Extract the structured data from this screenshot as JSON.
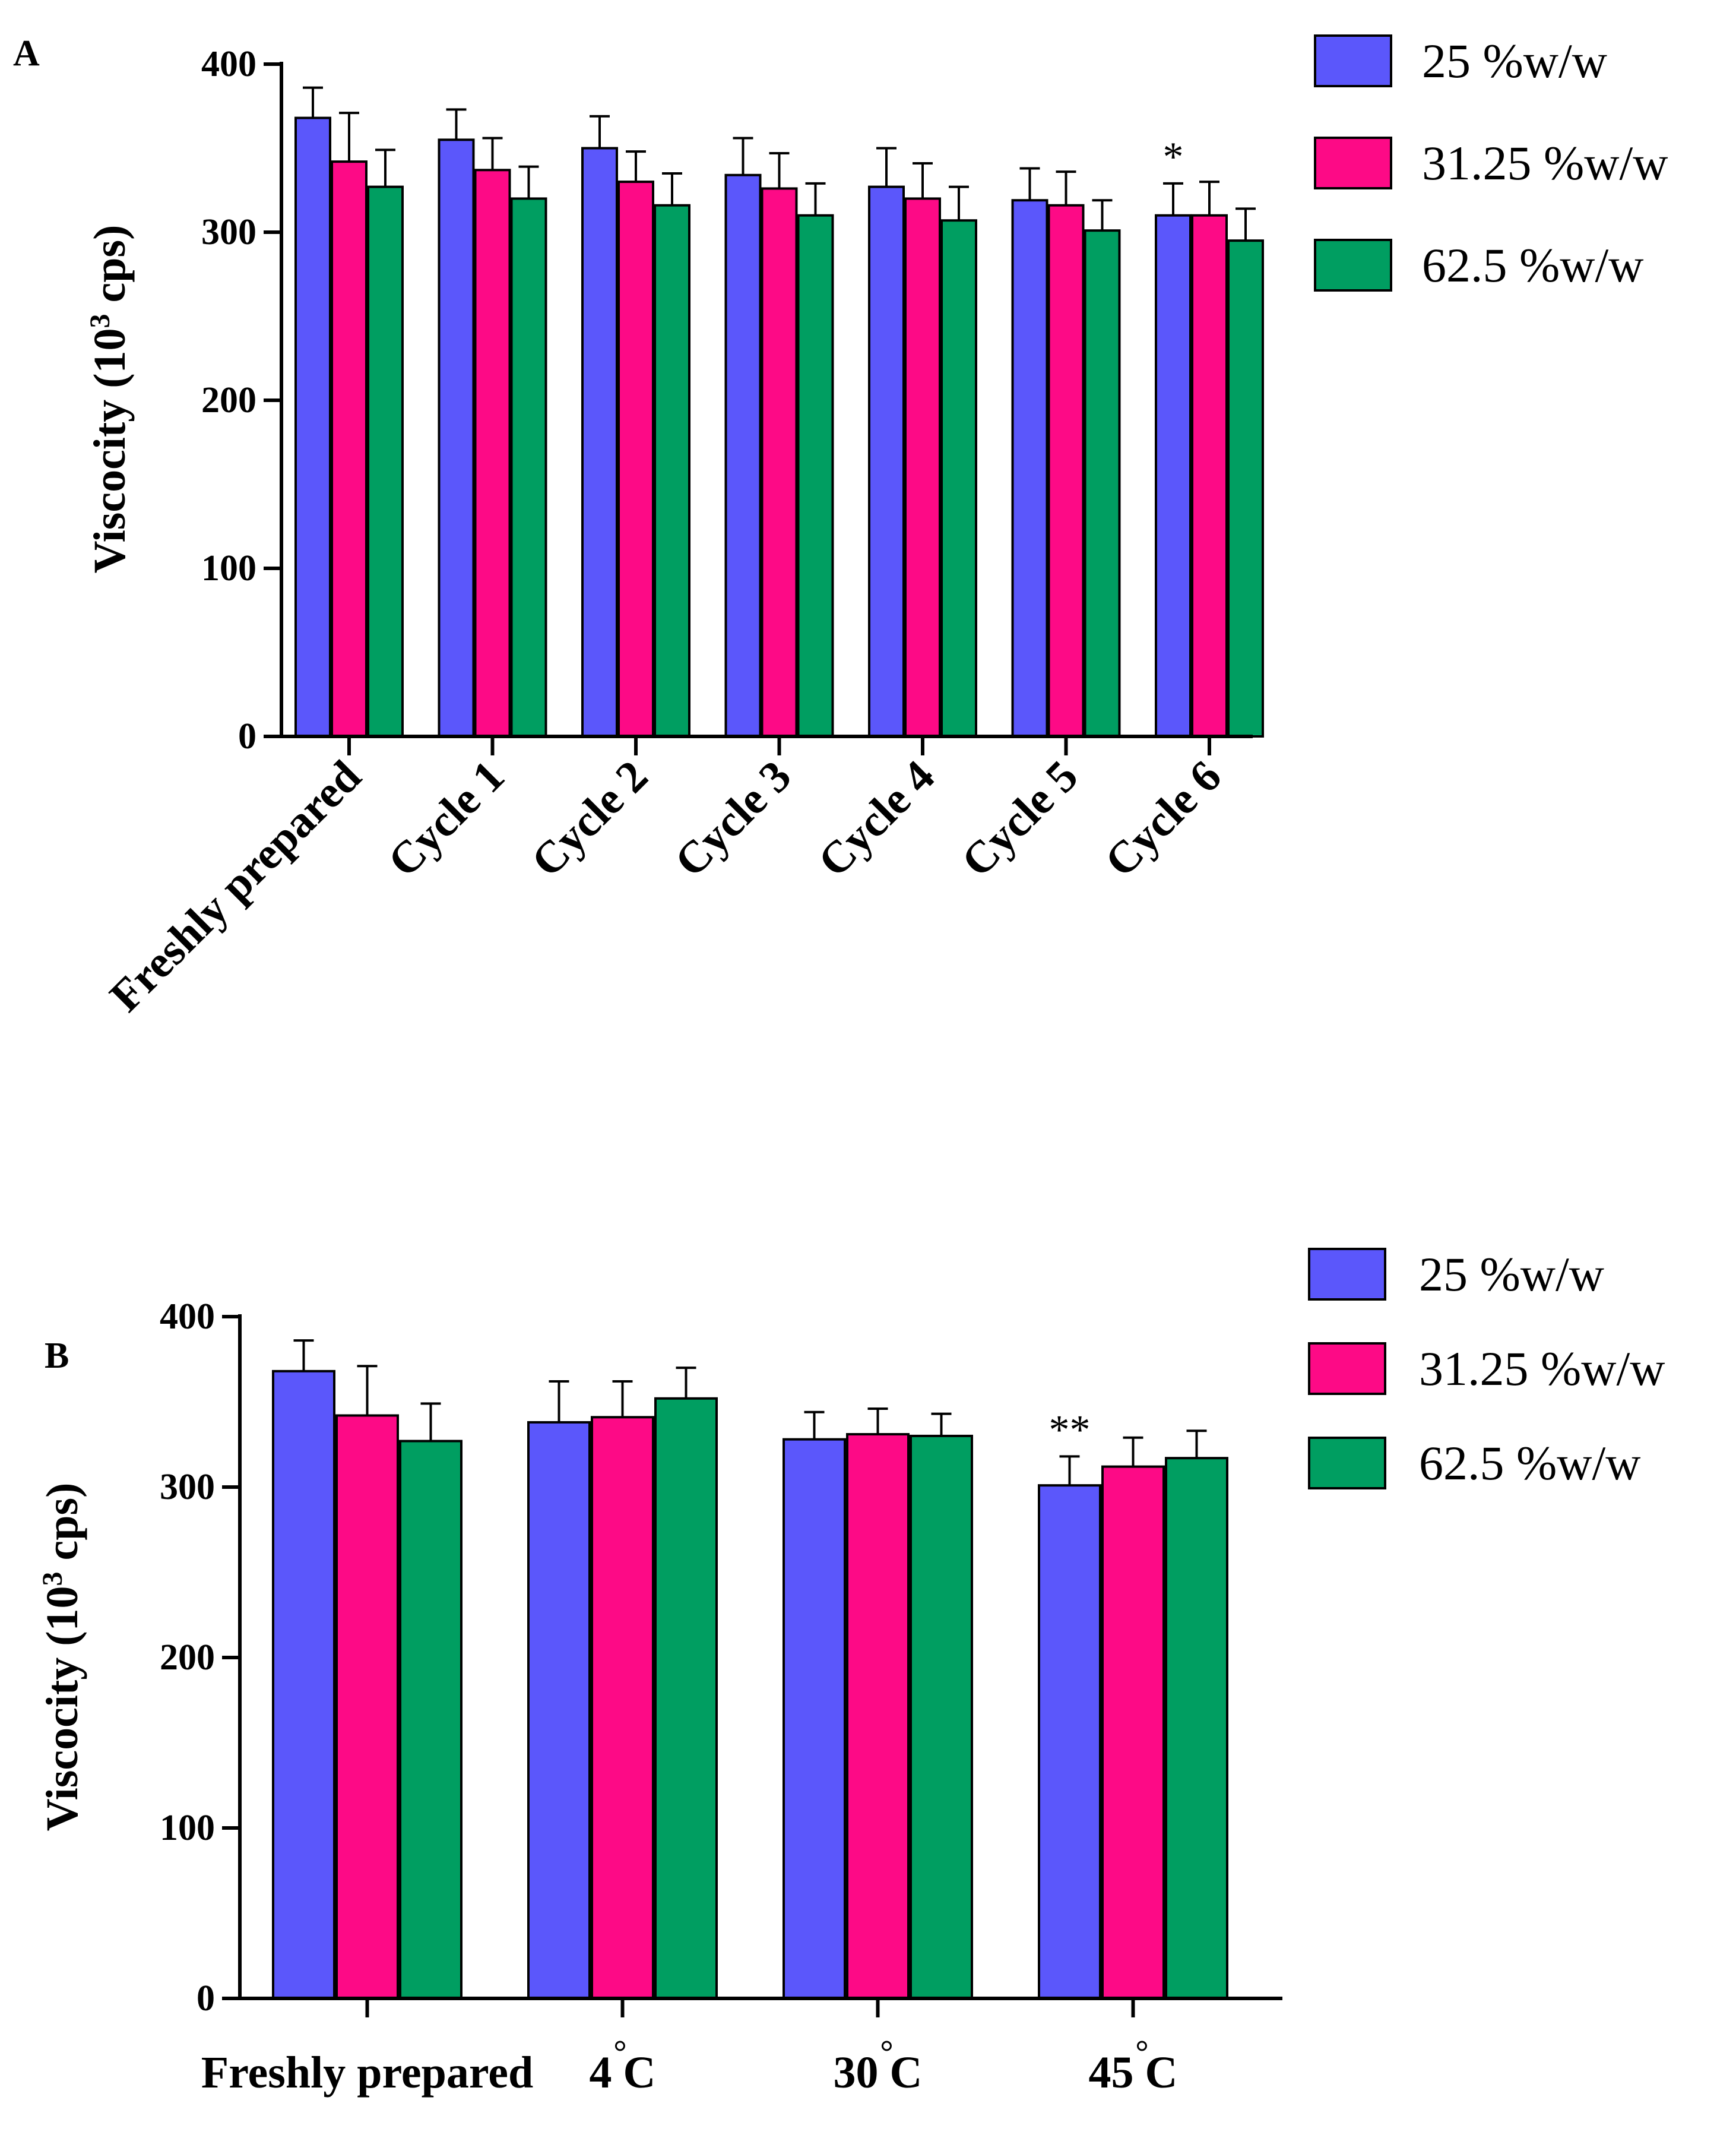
{
  "colors": {
    "series1": "#5b57fb",
    "series2": "#fd0a86",
    "series3": "#009e61",
    "axis": "#000000"
  },
  "chart_data": [
    {
      "panel_label": "A",
      "type": "bar",
      "ylabel_main": "Viscocity (10",
      "ylabel_sup": "3",
      "ylabel_tail": " cps)",
      "ylim": [
        0,
        400
      ],
      "yticks": [
        "0",
        "100",
        "200",
        "300",
        "400"
      ],
      "categories": [
        "Freshly prepared",
        "Cycle 1",
        "Cycle 2",
        "Cycle 3",
        "Cycle 4",
        "Cycle 5",
        "Cycle 6"
      ],
      "series": [
        {
          "name": "25 %w/w",
          "values": [
            368,
            355,
            350,
            334,
            327,
            319,
            310
          ],
          "errors": [
            18,
            18,
            19,
            22,
            23,
            19,
            19
          ]
        },
        {
          "name": "31.25 %w/w",
          "values": [
            342,
            337,
            330,
            326,
            320,
            316,
            310
          ],
          "errors": [
            29,
            19,
            18,
            21,
            21,
            20,
            20
          ]
        },
        {
          "name": "62.5 %w/w",
          "values": [
            327,
            320,
            316,
            310,
            307,
            301,
            295
          ],
          "errors": [
            22,
            19,
            19,
            19,
            20,
            18,
            19
          ]
        }
      ],
      "annotations": [
        {
          "category": "Cycle 6",
          "series": 0,
          "text": "*"
        }
      ]
    },
    {
      "panel_label": "B",
      "type": "bar",
      "ylabel_main": "Viscocity (10",
      "ylabel_sup": "3",
      "ylabel_tail": " cps)",
      "ylim": [
        0,
        400
      ],
      "yticks": [
        "0",
        "100",
        "200",
        "300",
        "400"
      ],
      "categories": [
        "Freshly prepared",
        "4 C",
        "30 C",
        "45 C"
      ],
      "category_degree": [
        false,
        true,
        true,
        true
      ],
      "series": [
        {
          "name": "25 %w/w",
          "values": [
            368,
            338,
            328,
            301
          ],
          "errors": [
            18,
            24,
            16,
            17
          ]
        },
        {
          "name": "31.25 %w/w",
          "values": [
            342,
            341,
            331,
            312
          ],
          "errors": [
            29,
            21,
            15,
            17
          ]
        },
        {
          "name": "62.5 %w/w",
          "values": [
            327,
            352,
            330,
            317
          ],
          "errors": [
            22,
            18,
            13,
            16
          ]
        }
      ],
      "annotations": [
        {
          "category": "45 C",
          "series": 0,
          "text": "**"
        }
      ]
    }
  ]
}
